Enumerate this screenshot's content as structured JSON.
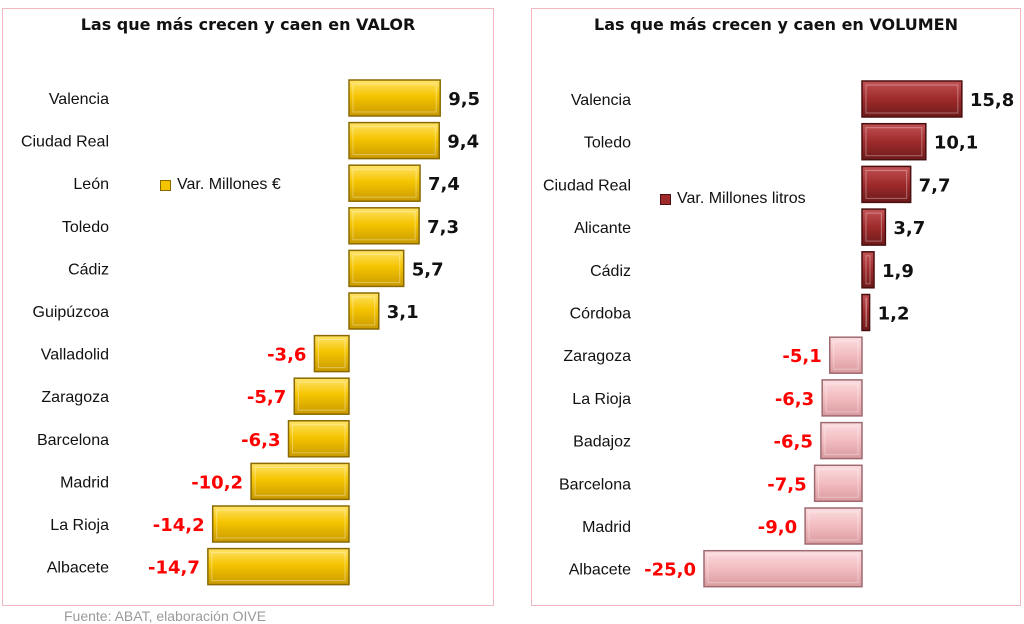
{
  "footer": "Fuente: ABAT, elaboración OIVE",
  "chart_data": [
    {
      "type": "bar",
      "orientation": "horizontal",
      "title": "Las que más crecen y caen en VALOR",
      "legend": "Var. Millones €",
      "legend_position": "center-left",
      "categories": [
        "Valencia",
        "Ciudad Real",
        "León",
        "Toledo",
        "Cádiz",
        "Guipúzcoa",
        "Valladolid",
        "Zaragoza",
        "Barcelona",
        "Madrid",
        "La Rioja",
        "Albacete"
      ],
      "values": [
        9.5,
        9.4,
        7.4,
        7.3,
        5.7,
        3.1,
        -3.6,
        -5.7,
        -6.3,
        -10.2,
        -14.2,
        -14.7
      ],
      "labels": [
        "9,5",
        "9,4",
        "7,4",
        "7,3",
        "5,7",
        "3,1",
        "-3,6",
        "-5,7",
        "-6,3",
        "-10,2",
        "-14,2",
        "-14,7"
      ],
      "colors": {
        "positive": "#f5c400",
        "negative": "#f5c400",
        "positive_label": "#111111",
        "negative_label": "#ff0000"
      }
    },
    {
      "type": "bar",
      "orientation": "horizontal",
      "title": "Las que más crecen y caen en VOLUMEN",
      "legend": "Var. Millones litros",
      "legend_position": "center-left",
      "categories": [
        "Valencia",
        "Toledo",
        "Ciudad Real",
        "Alicante",
        "Cádiz",
        "Córdoba",
        "Zaragoza",
        "La Rioja",
        "Badajoz",
        "Barcelona",
        "Madrid",
        "Albacete"
      ],
      "values": [
        15.8,
        10.1,
        7.7,
        3.7,
        1.9,
        1.2,
        -5.1,
        -6.3,
        -6.5,
        -7.5,
        -9.0,
        -25.0
      ],
      "labels": [
        "15,8",
        "10,1",
        "7,7",
        "3,7",
        "1,9",
        "1,2",
        "-5,1",
        "-6,3",
        "-6,5",
        "-7,5",
        "-9,0",
        "-25,0"
      ],
      "colors": {
        "positive": "#9e2a2b",
        "negative": "#f2bcc0",
        "positive_label": "#111111",
        "negative_label": "#ff0000"
      }
    }
  ]
}
